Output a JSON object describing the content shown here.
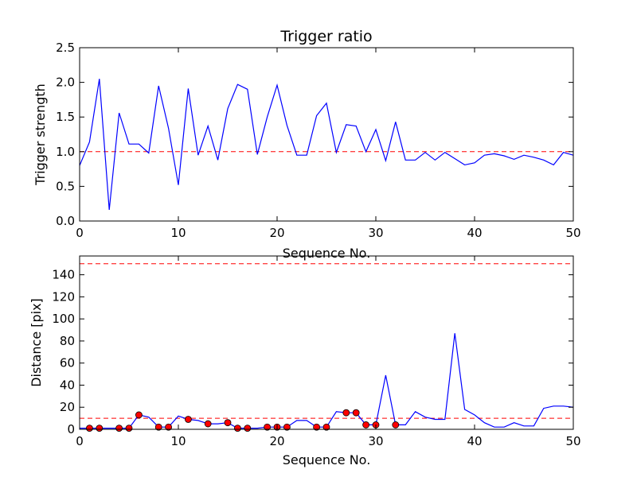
{
  "chart_data": [
    {
      "type": "line",
      "title": "Trigger ratio",
      "xlabel": "Sequence No.",
      "ylabel": "Trigger strength",
      "xlim": [
        0,
        50
      ],
      "ylim": [
        0,
        2.5
      ],
      "xticks": [
        "0",
        "10",
        "20",
        "30",
        "40",
        "50"
      ],
      "yticks": [
        "0.0",
        "0.5",
        "1.0",
        "1.5",
        "2.0",
        "2.5"
      ],
      "grid": false,
      "series": [
        {
          "color": "#0000ff",
          "style": "solid",
          "x": [
            0,
            1,
            2,
            3,
            4,
            5,
            6,
            7,
            8,
            9,
            10,
            11,
            12,
            13,
            14,
            15,
            16,
            17,
            18,
            19,
            20,
            21,
            22,
            23,
            24,
            25,
            26,
            27,
            28,
            29,
            30,
            31,
            32,
            33,
            34,
            35,
            36,
            37,
            38,
            39,
            40,
            41,
            42,
            43,
            44,
            45,
            46,
            47,
            48,
            49,
            50
          ],
          "values": [
            0.8,
            1.14,
            2.05,
            0.16,
            1.56,
            1.11,
            1.11,
            0.98,
            1.95,
            1.34,
            0.52,
            1.91,
            0.95,
            1.37,
            0.88,
            1.62,
            1.97,
            1.9,
            0.96,
            1.5,
            1.96,
            1.38,
            0.95,
            0.95,
            1.52,
            1.7,
            0.99,
            1.39,
            1.37,
            1.0,
            1.32,
            0.87,
            1.43,
            0.88,
            0.88,
            0.99,
            0.88,
            0.99,
            0.9,
            0.81,
            0.84,
            0.95,
            0.97,
            0.94,
            0.89,
            0.95,
            0.92,
            0.88,
            0.81,
            0.99,
            0.95
          ]
        }
      ],
      "reference_lines": [
        {
          "y": 1.0,
          "color": "#ff0000",
          "style": "dashed"
        }
      ]
    },
    {
      "type": "line",
      "title": "",
      "xlabel": "Sequence No.",
      "ylabel": "Distance [pix]",
      "xlim": [
        0,
        50
      ],
      "ylim": [
        0,
        157
      ],
      "xticks": [
        "0",
        "10",
        "20",
        "30",
        "40",
        "50"
      ],
      "yticks": [
        "0",
        "20",
        "40",
        "60",
        "80",
        "100",
        "120",
        "140"
      ],
      "grid": false,
      "series": [
        {
          "color": "#0000ff",
          "style": "solid",
          "x": [
            0,
            1,
            2,
            3,
            4,
            5,
            6,
            7,
            8,
            9,
            10,
            11,
            12,
            13,
            14,
            15,
            16,
            17,
            18,
            19,
            20,
            21,
            22,
            23,
            24,
            25,
            26,
            27,
            28,
            29,
            30,
            31,
            32,
            33,
            34,
            35,
            36,
            37,
            38,
            39,
            40,
            41,
            42,
            43,
            44,
            45,
            46,
            47,
            48,
            49,
            50
          ],
          "values": [
            1,
            1,
            1,
            1,
            1,
            1,
            13,
            11,
            2,
            2,
            12,
            9,
            8,
            5,
            5,
            6,
            1,
            1,
            1,
            2,
            2,
            2,
            8,
            8,
            2,
            2,
            16,
            15,
            15,
            4,
            4,
            49,
            4,
            4,
            16,
            11,
            9,
            9,
            87,
            18,
            13,
            6,
            2,
            2,
            6,
            3,
            3,
            19,
            21,
            21,
            20
          ]
        },
        {
          "type": "scatter",
          "marker": "circle",
          "color": "#ff0000",
          "x": [
            1,
            2,
            4,
            5,
            6,
            8,
            9,
            11,
            13,
            15,
            16,
            17,
            19,
            20,
            21,
            24,
            25,
            27,
            28,
            29,
            30,
            32
          ],
          "values": [
            1,
            1,
            1,
            1,
            13,
            2,
            2,
            9,
            5,
            6,
            1,
            1,
            2,
            2,
            2,
            2,
            2,
            15,
            15,
            4,
            4,
            4
          ]
        }
      ],
      "reference_lines": [
        {
          "y": 10,
          "color": "#ff0000",
          "style": "dashed"
        },
        {
          "y": 150,
          "color": "#ff0000",
          "style": "dashed"
        }
      ]
    }
  ]
}
